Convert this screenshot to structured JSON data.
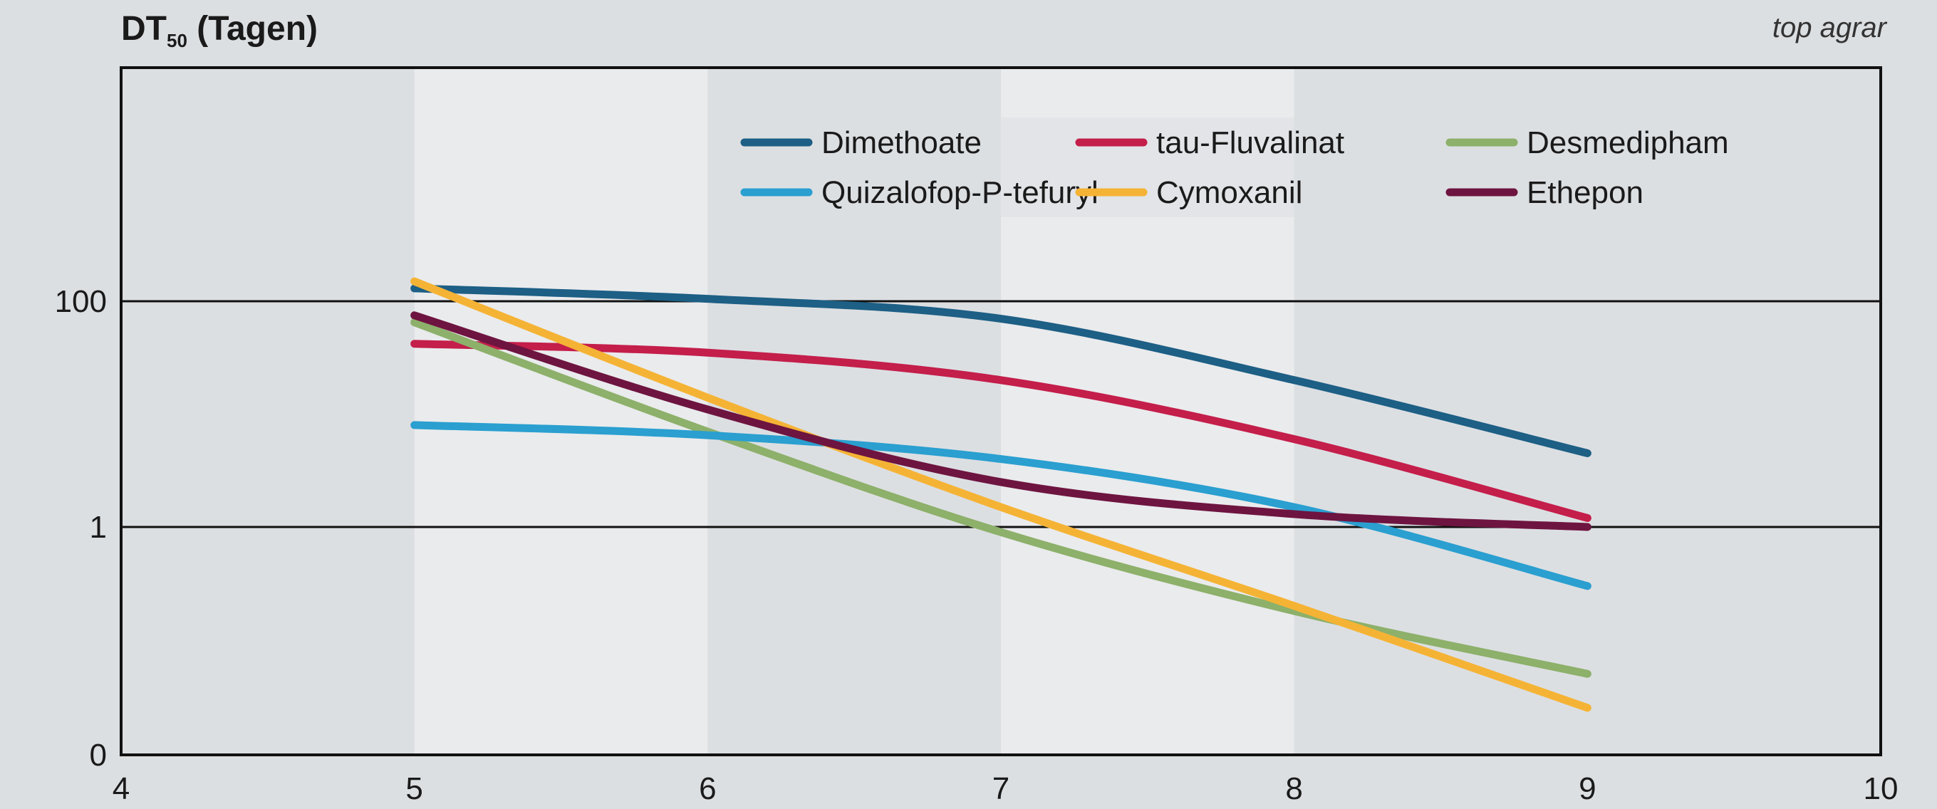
{
  "chart_data": {
    "type": "line",
    "title": "",
    "ylabel": {
      "prefix": "DT",
      "subscript": "50",
      "suffix": " (Tagen)"
    },
    "source": "top agrar",
    "xlim": [
      4,
      10
    ],
    "xticks": [
      "4",
      "5",
      "6",
      "7",
      "8",
      "9",
      "10"
    ],
    "yticks": [
      {
        "value": 0,
        "label": "0"
      },
      {
        "value": 1,
        "label": "1"
      },
      {
        "value": 100,
        "label": "100"
      }
    ],
    "yscale": "piecewise-log",
    "ylim": [
      0,
      10000
    ],
    "grid": "horizontal at 1 and 100",
    "legend": {
      "placement": "top-right",
      "columns": 3
    },
    "series": [
      {
        "name": "Dimethoate",
        "color": "#1d5f85",
        "x": [
          5,
          6,
          7,
          8,
          9
        ],
        "y": [
          130,
          105,
          70,
          20,
          4.5
        ]
      },
      {
        "name": "tau-Fluvalinat",
        "color": "#c41e4b",
        "x": [
          5,
          6,
          7,
          8,
          9
        ],
        "y": [
          42,
          35,
          20,
          6,
          1.2
        ]
      },
      {
        "name": "Desmedipham",
        "color": "#8db06a",
        "x": [
          5,
          6,
          7,
          8,
          9
        ],
        "y": [
          65,
          7,
          0.9,
          0.18,
          0.05
        ]
      },
      {
        "name": "Quizalofop-P-tefuryl",
        "color": "#2a9fd0",
        "x": [
          5,
          6,
          7,
          8,
          9
        ],
        "y": [
          8,
          6.5,
          4,
          1.5,
          0.3
        ]
      },
      {
        "name": "Cymoxanil",
        "color": "#f5b335",
        "x": [
          5,
          6,
          7,
          8,
          9
        ],
        "y": [
          150,
          14,
          1.5,
          0.2,
          0.025
        ]
      },
      {
        "name": "Ethepon",
        "color": "#6e1440",
        "x": [
          5,
          6,
          7,
          8,
          9
        ],
        "y": [
          75,
          11,
          2.5,
          1.3,
          1
        ]
      }
    ]
  }
}
